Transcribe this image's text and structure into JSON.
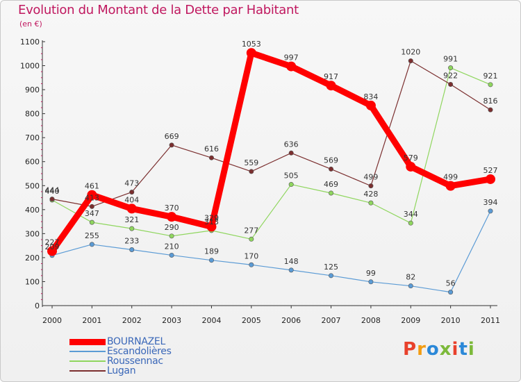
{
  "header": {
    "title": "Evolution du Montant de la Dette par Habitant",
    "subtitle": "(en €)"
  },
  "logo": {
    "text": "Proxiti",
    "colors": [
      "#e8412c",
      "#f39c12",
      "#2b88d8",
      "#7cb93a",
      "#e8412c",
      "#2b88d8",
      "#7cb93a"
    ]
  },
  "chart_data": {
    "type": "line",
    "title": "Evolution du Montant de la Dette par Habitant",
    "subtitle": "(en €)",
    "x": [
      "2000",
      "2001",
      "2002",
      "2003",
      "2004",
      "2005",
      "2006",
      "2007",
      "2008",
      "2009",
      "2010",
      "2011"
    ],
    "ylim": [
      0,
      1100
    ],
    "yticks": [
      0,
      100,
      200,
      300,
      400,
      500,
      600,
      700,
      800,
      900,
      1000,
      1100
    ],
    "grid": false,
    "legend_position": "bottom-left",
    "series": [
      {
        "name": "BOURNAZEL",
        "color": "#ff0000",
        "values": [
          227,
          461,
          404,
          370,
          329,
          1053,
          997,
          917,
          834,
          579,
          499,
          527
        ]
      },
      {
        "name": "Escandolières",
        "color": "#5b9bd5",
        "values": [
          209,
          255,
          233,
          210,
          189,
          170,
          148,
          125,
          99,
          82,
          56,
          394
        ]
      },
      {
        "name": "Roussennac",
        "color": "#8fd65e",
        "values": [
          440,
          347,
          321,
          290,
          313,
          277,
          505,
          469,
          428,
          344,
          991,
          921
        ]
      },
      {
        "name": "Lugan",
        "color": "#7b2f2f",
        "values": [
          444,
          413,
          473,
          669,
          616,
          559,
          636,
          569,
          499,
          1020,
          922,
          816
        ]
      }
    ]
  }
}
